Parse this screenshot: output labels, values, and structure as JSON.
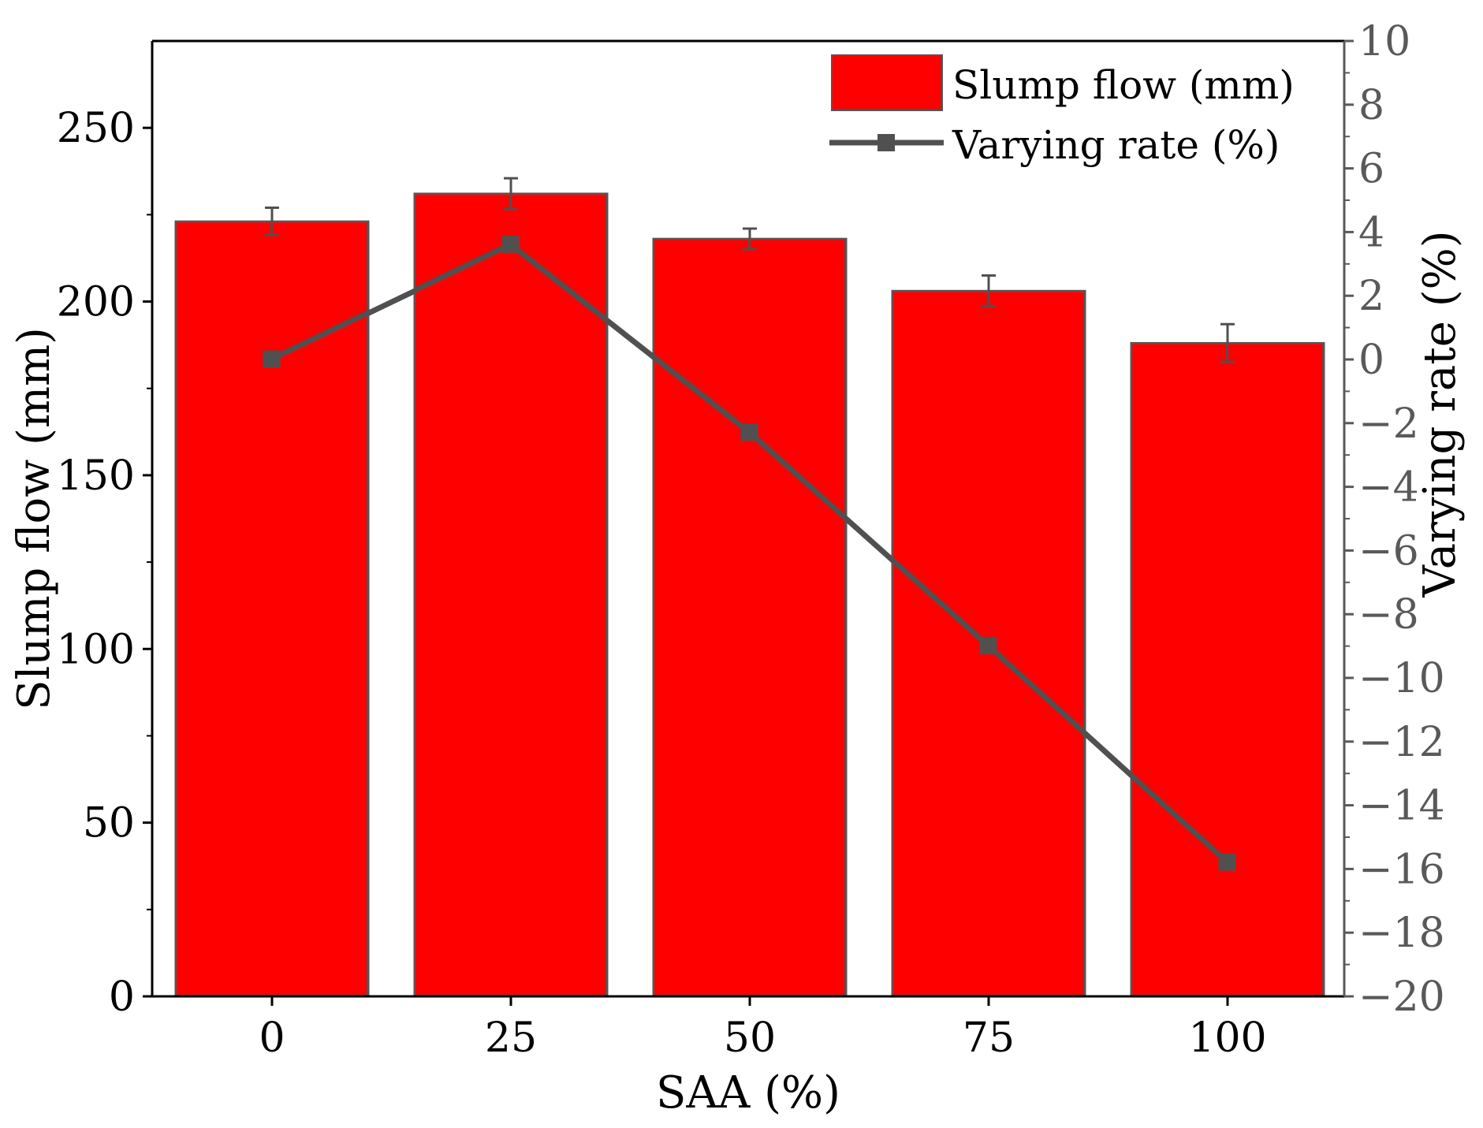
{
  "chart_data": {
    "type": "bar",
    "categories": [
      "0",
      "25",
      "50",
      "75",
      "100"
    ],
    "xlabel": "SAA (%)",
    "ylabel": "Slump flow (mm)",
    "ylabel_right": "Varying rate (%)",
    "ylim": [
      0,
      275
    ],
    "ylim_right": [
      -20,
      10
    ],
    "yticks": [
      0,
      50,
      100,
      150,
      200,
      250
    ],
    "yticks_right": [
      -20,
      -18,
      -16,
      -14,
      -12,
      -10,
      -8,
      -6,
      -4,
      -2,
      0,
      2,
      4,
      6,
      8,
      10
    ],
    "grid": false,
    "legend_position": "top-right",
    "series": [
      {
        "name": "Slump flow (mm)",
        "kind": "bar",
        "axis": "left",
        "color": "#ff0000",
        "values": [
          223,
          231,
          218,
          203,
          188
        ],
        "errors": [
          4,
          4.5,
          3,
          4.5,
          5.5
        ]
      },
      {
        "name": "Varying rate (%)",
        "kind": "line",
        "axis": "right",
        "color": "#505050",
        "values": [
          0,
          3.6,
          -2.3,
          -9.0,
          -15.8
        ]
      }
    ]
  }
}
